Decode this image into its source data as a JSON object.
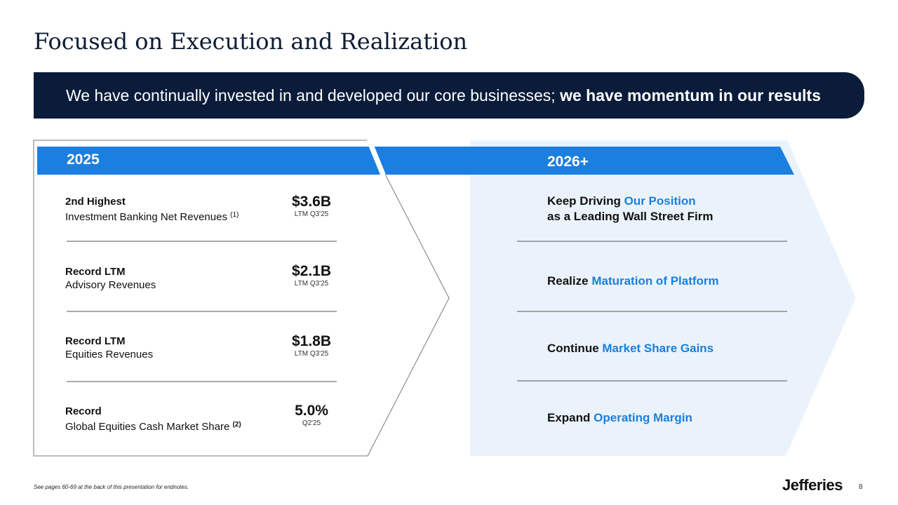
{
  "title": "Focused on Execution and Realization",
  "banner": {
    "text_regular": "We have continually invested in and developed our core businesses;",
    "text_bold": "we have momentum in our results"
  },
  "left_panel": {
    "year": "2025",
    "rows": [
      {
        "title": "2nd Highest",
        "subtitle": "Investment Banking Net Revenues",
        "note": "(1)",
        "value": "$3.6B",
        "period": "LTM Q3'25"
      },
      {
        "title": "Record LTM",
        "subtitle": "Advisory Revenues",
        "note": "",
        "value": "$2.1B",
        "period": "LTM Q3'25"
      },
      {
        "title": "Record LTM",
        "subtitle": "Equities Revenues",
        "note": "",
        "value": "$1.8B",
        "period": "LTM Q3'25"
      },
      {
        "title": "Record",
        "subtitle": "Global Equities Cash Market Share",
        "note": "(2)",
        "value": "5.0%",
        "period": "Q2'25"
      }
    ]
  },
  "right_panel": {
    "year": "2026+",
    "goals": [
      {
        "prefix": "Keep Driving",
        "highlight": "Our Position",
        "suffix": "as a Leading Wall Street Firm"
      },
      {
        "prefix": "Realize",
        "highlight": "Maturation of Platform",
        "suffix": ""
      },
      {
        "prefix": "Continue",
        "highlight": "Market Share Gains",
        "suffix": ""
      },
      {
        "prefix": "Expand",
        "highlight": "Operating Margin",
        "suffix": ""
      }
    ]
  },
  "footnote": "See pages 60-69 at the back of this presentation for endnotes.",
  "logo": "Jefferies",
  "page_number": "8",
  "colors": {
    "navy": "#0a1c3a",
    "blue": "#1a7fe0",
    "light_panel": "#eaf3fc"
  }
}
